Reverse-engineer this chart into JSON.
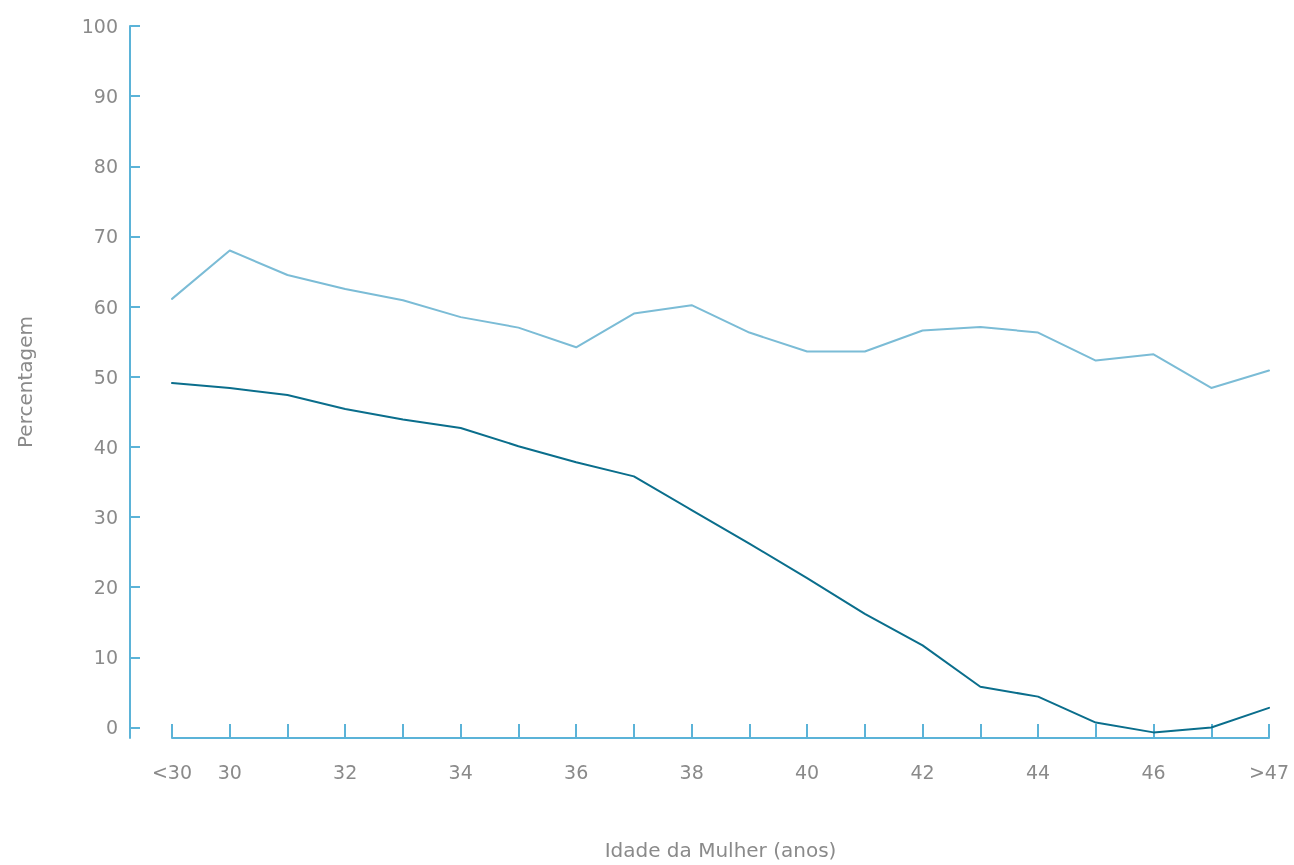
{
  "chart_data": {
    "type": "line",
    "xlabel": "Idade da Mulher (anos)",
    "ylabel": "Percentagem",
    "categories": [
      "<30",
      "30",
      null,
      "32",
      null,
      "34",
      null,
      "36",
      null,
      "38",
      null,
      "40",
      null,
      "42",
      null,
      "44",
      null,
      "46",
      null,
      ">47"
    ],
    "series": [
      {
        "color": "#7bbcd6",
        "values": [
          61.1,
          68.0,
          64.5,
          62.5,
          60.9,
          58.5,
          57.0,
          54.2,
          59.0,
          60.2,
          56.3,
          53.6,
          53.6,
          56.6,
          57.1,
          56.3,
          52.3,
          53.2,
          48.4,
          50.9
        ]
      },
      {
        "color": "#0a6e8c",
        "values": [
          49.1,
          48.4,
          47.4,
          45.4,
          43.9,
          42.7,
          40.1,
          37.8,
          35.8,
          31.0,
          26.2,
          21.3,
          16.2,
          11.7,
          5.8,
          4.4,
          0.7,
          -0.7,
          0,
          2.8
        ]
      }
    ],
    "ylim": [
      -1.5,
      100
    ],
    "yticks": [
      0,
      10,
      20,
      30,
      40,
      50,
      60,
      70,
      80,
      90,
      100
    ],
    "grid": false,
    "marker": "none",
    "line_style": "solid"
  }
}
